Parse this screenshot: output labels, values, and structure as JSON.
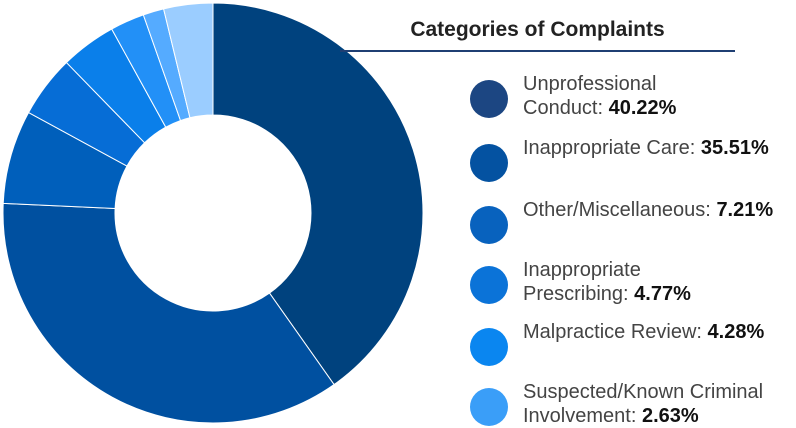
{
  "chart_data": {
    "type": "donut",
    "title": "Categories of Complaints",
    "categories": [
      "Unprofessional\nConduct:",
      "Inappropriate Care:",
      "Other/Miscellaneous:",
      "Inappropriate\nPrescribing:",
      "Malpractice Review:",
      "Suspected/Known Criminal\nInvolvement:",
      null,
      null
    ],
    "values": [
      40.22,
      35.51,
      7.21,
      4.77,
      4.28,
      2.63,
      1.6,
      3.78
    ],
    "value_labels": [
      "40.22%",
      "35.51%",
      "7.21%",
      "4.77%",
      "4.28%",
      "2.63%",
      null,
      null
    ],
    "colors": [
      "#00427e",
      "#0050a0",
      "#005fbb",
      "#066dd6",
      "#0a7fea",
      "#2290f7",
      "#55abff",
      "#9bcdff"
    ],
    "legend_colors": [
      "#1c4682",
      "#0452a1",
      "#0862be",
      "#0b73d8",
      "#0a86f0",
      "#3a9ef8"
    ]
  }
}
